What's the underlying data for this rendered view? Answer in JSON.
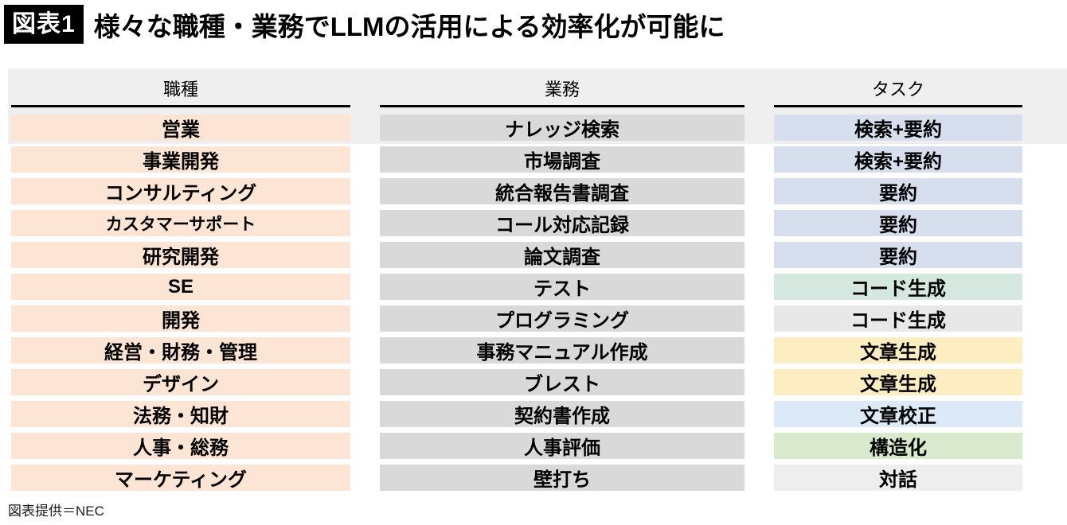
{
  "title": {
    "tag": "図表1",
    "text": "様々な職種・業務でLLMの活用による効率化が可能に"
  },
  "footer": {
    "credit": "図表提供＝NEC"
  },
  "colors": {
    "title_box": "#000000",
    "band": "#efefef",
    "job_cell": "#fce5d5",
    "work_cell": "#d9d9d9"
  },
  "table": {
    "columns": [
      {
        "label": "職種"
      },
      {
        "label": "業務"
      },
      {
        "label": "タスク"
      }
    ],
    "rows": [
      {
        "job": "営業",
        "work": "ナレッジ検索",
        "task": "検索+要約",
        "task_color": "#d7dfee"
      },
      {
        "job": "事業開発",
        "work": "市場調査",
        "task": "検索+要約",
        "task_color": "#d7dfee"
      },
      {
        "job": "コンサルティング",
        "work": "統合報告書調査",
        "task": "要約",
        "task_color": "#d7dfee"
      },
      {
        "job": "カスタマーサポート",
        "work": "コール対応記録",
        "task": "要約",
        "task_color": "#d7dfee"
      },
      {
        "job": "研究開発",
        "work": "論文調査",
        "task": "要約",
        "task_color": "#d7dfee"
      },
      {
        "job": "SE",
        "work": "テスト",
        "task": "コード生成",
        "task_color": "#d5e8e0"
      },
      {
        "job": "開発",
        "work": "プログラミング",
        "task": "コード生成",
        "task_color": "#e8e8e8"
      },
      {
        "job": "経営・財務・管理",
        "work": "事務マニュアル作成",
        "task": "文章生成",
        "task_color": "#fdedc2"
      },
      {
        "job": "デザイン",
        "work": "ブレスト",
        "task": "文章生成",
        "task_color": "#fdedc2"
      },
      {
        "job": "法務・知財",
        "work": "契約書作成",
        "task": "文章校正",
        "task_color": "#dce9f7"
      },
      {
        "job": "人事・総務",
        "work": "人事評価",
        "task": "構造化",
        "task_color": "#d9e9cd"
      },
      {
        "job": "マーケティング",
        "work": "壁打ち",
        "task": "対話",
        "task_color": "#eeeeee"
      }
    ]
  },
  "chart_data": {
    "type": "table",
    "title": "様々な職種・業務でLLMの活用による効率化が可能に",
    "columns": [
      "職種",
      "業務",
      "タスク"
    ],
    "rows": [
      [
        "営業",
        "ナレッジ検索",
        "検索+要約"
      ],
      [
        "事業開発",
        "市場調査",
        "検索+要約"
      ],
      [
        "コンサルティング",
        "統合報告書調査",
        "要約"
      ],
      [
        "カスタマーサポート",
        "コール対応記録",
        "要約"
      ],
      [
        "研究開発",
        "論文調査",
        "要約"
      ],
      [
        "SE",
        "テスト",
        "コード生成"
      ],
      [
        "開発",
        "プログラミング",
        "コード生成"
      ],
      [
        "経営・財務・管理",
        "事務マニュアル作成",
        "文章生成"
      ],
      [
        "デザイン",
        "ブレスト",
        "文章生成"
      ],
      [
        "法務・知財",
        "契約書作成",
        "文章校正"
      ],
      [
        "人事・総務",
        "人事評価",
        "構造化"
      ],
      [
        "マーケティング",
        "壁打ち",
        "対話"
      ]
    ],
    "legend_position": "none",
    "grid": false,
    "source": "図表提供＝NEC"
  }
}
